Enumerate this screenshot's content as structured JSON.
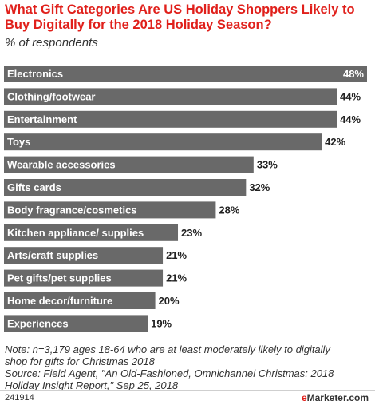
{
  "chart_data": {
    "type": "bar",
    "orientation": "horizontal",
    "title": "What Gift Categories Are US Holiday Shoppers Likely to Buy Digitally for the 2018 Holiday Season?",
    "subtitle": "% of respondents",
    "categories": [
      "Electronics",
      "Clothing/footwear",
      "Entertainment",
      "Toys",
      "Wearable accessories",
      "Gifts cards",
      "Body fragrance/cosmetics",
      "Kitchen appliance/ supplies",
      "Arts/craft supplies",
      "Pet gifts/pet supplies",
      "Home decor/furniture",
      "Experiences"
    ],
    "values": [
      48,
      44,
      44,
      42,
      33,
      32,
      28,
      23,
      21,
      21,
      20,
      19
    ],
    "value_labels": [
      "48%",
      "44%",
      "44%",
      "42%",
      "33%",
      "32%",
      "28%",
      "23%",
      "21%",
      "21%",
      "20%",
      "19%"
    ],
    "xlim": [
      0,
      48
    ],
    "bar_color": "#696969",
    "grid": false,
    "legend": "none"
  },
  "note": {
    "lines": [
      "Note: n=3,179 ages 18-64 who are at least moderately likely to digitally",
      "shop for gifts for Christmas 2018",
      "Source: Field Agent, \"An Old-Fashioned, Omnichannel Christmas: 2018",
      "Holiday Insight Report,\" Sep 25, 2018"
    ]
  },
  "footer": {
    "chart_id": "241914",
    "logo_e": "e",
    "logo_rest": "Marketer.com"
  },
  "colors": {
    "title": "#e0201b",
    "bar": "#696969",
    "text": "#333333"
  }
}
